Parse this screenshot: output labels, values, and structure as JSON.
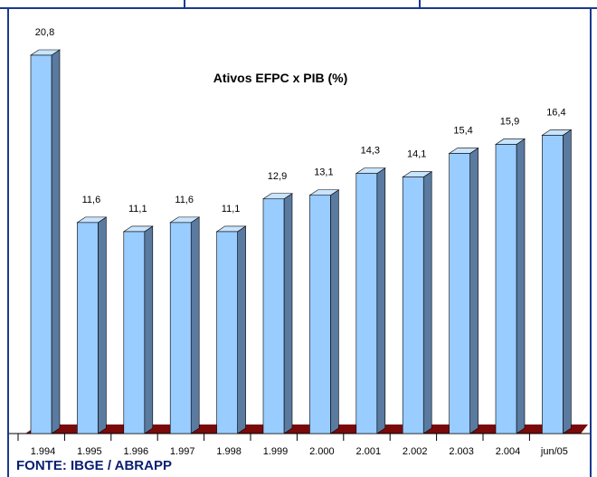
{
  "chart_data": {
    "type": "bar",
    "title": "Ativos EFPC x PIB (%)",
    "categories": [
      "1.994",
      "1.995",
      "1.996",
      "1.997",
      "1.998",
      "1.999",
      "2.000",
      "2.001",
      "2.002",
      "2.003",
      "2.004",
      "jun/05"
    ],
    "values": [
      20.8,
      11.6,
      11.1,
      11.6,
      11.1,
      12.9,
      13.1,
      14.3,
      14.1,
      15.4,
      15.9,
      16.4
    ],
    "value_labels": [
      "20,8",
      "11,6",
      "11,1",
      "11,6",
      "11,1",
      "12,9",
      "13,1",
      "14,3",
      "14,1",
      "15,4",
      "15,9",
      "16,4"
    ],
    "ylim": [
      0,
      20.8
    ],
    "grid": false,
    "colors": {
      "bar_front": "#99ccff",
      "bar_side": "#5a7aa0",
      "bar_top": "#c8e4ff",
      "floor": "#7a0a0a",
      "frame": "#1a3a8f"
    }
  },
  "source": "FONTE: IBGE / ABRAPP"
}
